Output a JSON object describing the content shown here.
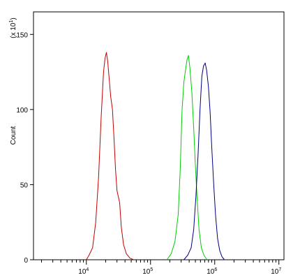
{
  "chart_data": {
    "type": "line",
    "title": "",
    "xlabel": "",
    "ylabel": "Count",
    "yscale_label": "(x 10^1)",
    "x_scale": "log",
    "xlim": [
      1500,
      12000000
    ],
    "ylim": [
      0,
      165
    ],
    "x_tick_labels": [
      {
        "value": 10000,
        "base": "10",
        "exp": "4"
      },
      {
        "value": 100000,
        "base": "10",
        "exp": "5"
      },
      {
        "value": 1000000,
        "base": "10",
        "exp": "6"
      },
      {
        "value": 10000000,
        "base": "10",
        "exp": "7"
      }
    ],
    "y_ticks": [
      0,
      50,
      100,
      150
    ],
    "y_tick_labels": [
      "0",
      "50",
      "100",
      "150"
    ],
    "grid": false,
    "series": [
      {
        "color": "#c00000",
        "points": [
          [
            10000,
            0
          ],
          [
            11000,
            3
          ],
          [
            12500,
            8
          ],
          [
            14000,
            25
          ],
          [
            15500,
            55
          ],
          [
            17000,
            95
          ],
          [
            18500,
            125
          ],
          [
            19500,
            134
          ],
          [
            20500,
            138
          ],
          [
            21500,
            132
          ],
          [
            22500,
            122
          ],
          [
            24000,
            108
          ],
          [
            25500,
            100
          ],
          [
            27000,
            80
          ],
          [
            28500,
            60
          ],
          [
            30000,
            46
          ],
          [
            31500,
            42
          ],
          [
            33000,
            38
          ],
          [
            35000,
            22
          ],
          [
            38000,
            10
          ],
          [
            42000,
            4
          ],
          [
            48000,
            1
          ],
          [
            55000,
            0
          ]
        ]
      },
      {
        "color": "#00cc00",
        "points": [
          [
            180000,
            0
          ],
          [
            210000,
            4
          ],
          [
            240000,
            12
          ],
          [
            270000,
            30
          ],
          [
            290000,
            60
          ],
          [
            310000,
            100
          ],
          [
            330000,
            118
          ],
          [
            350000,
            126
          ],
          [
            370000,
            133
          ],
          [
            390000,
            136
          ],
          [
            410000,
            128
          ],
          [
            440000,
            112
          ],
          [
            470000,
            88
          ],
          [
            500000,
            62
          ],
          [
            530000,
            42
          ],
          [
            570000,
            20
          ],
          [
            620000,
            8
          ],
          [
            680000,
            3
          ],
          [
            760000,
            0
          ]
        ]
      },
      {
        "color": "#000080",
        "points": [
          [
            330000,
            0
          ],
          [
            380000,
            3
          ],
          [
            430000,
            8
          ],
          [
            470000,
            20
          ],
          [
            510000,
            42
          ],
          [
            550000,
            70
          ],
          [
            590000,
            100
          ],
          [
            630000,
            122
          ],
          [
            670000,
            129
          ],
          [
            710000,
            131
          ],
          [
            750000,
            126
          ],
          [
            800000,
            115
          ],
          [
            850000,
            98
          ],
          [
            900000,
            75
          ],
          [
            960000,
            52
          ],
          [
            1030000,
            30
          ],
          [
            1110000,
            14
          ],
          [
            1200000,
            6
          ],
          [
            1300000,
            2
          ],
          [
            1420000,
            0
          ]
        ]
      }
    ]
  }
}
